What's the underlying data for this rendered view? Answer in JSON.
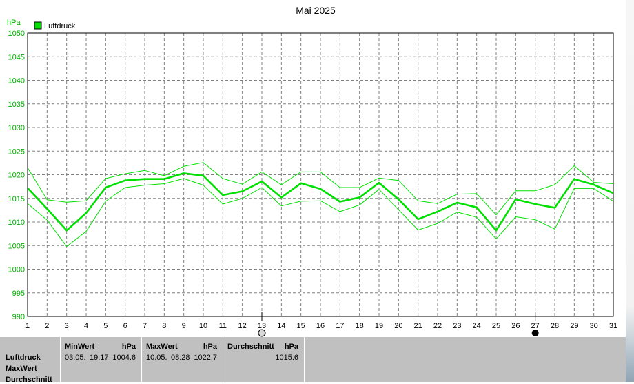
{
  "chart_data": {
    "type": "line",
    "title": "Mai 2025",
    "ylabel": "hPa",
    "legend": {
      "label": "Luftdruck",
      "placement": "top-left",
      "color": "#00e000"
    },
    "ylim": [
      990,
      1050
    ],
    "yticks": [
      990,
      995,
      1000,
      1005,
      1010,
      1015,
      1020,
      1025,
      1030,
      1035,
      1040,
      1045,
      1050
    ],
    "x": [
      1,
      2,
      3,
      4,
      5,
      6,
      7,
      8,
      9,
      10,
      11,
      12,
      13,
      14,
      15,
      16,
      17,
      18,
      19,
      20,
      21,
      22,
      23,
      24,
      25,
      26,
      27,
      28,
      29,
      30,
      31
    ],
    "grid": true,
    "colors": {
      "series": "#00e000",
      "grid": "#808080",
      "axis_text": "#00b000"
    },
    "series": [
      {
        "name": "Luftdruck",
        "values": [
          1017.2,
          1012.8,
          1008.2,
          1011.9,
          1017.3,
          1018.8,
          1019.1,
          1019.1,
          1020.3,
          1019.8,
          1015.7,
          1016.5,
          1018.6,
          1015.2,
          1018.2,
          1017.0,
          1014.3,
          1015.2,
          1018.3,
          1014.8,
          1010.6,
          1012.2,
          1014.1,
          1013.1,
          1008.2,
          1014.8,
          1013.8,
          1013.0,
          1019.1,
          1017.9,
          1016.1
        ]
      },
      {
        "values": [
          1021.5,
          1014.7,
          1014.2,
          1014.5,
          1019.2,
          1020.2,
          1020.9,
          1019.8,
          1021.8,
          1022.6,
          1019.2,
          1018.0,
          1020.6,
          1017.9,
          1020.6,
          1020.6,
          1017.3,
          1017.3,
          1019.3,
          1018.8,
          1014.5,
          1013.9,
          1015.9,
          1016.0,
          1011.5,
          1016.6,
          1016.6,
          1017.9,
          1021.9,
          1018.4,
          1018.1
        ]
      },
      {
        "values": [
          1013.9,
          1010.4,
          1004.8,
          1008.0,
          1014.4,
          1017.3,
          1017.8,
          1018.1,
          1019.2,
          1017.8,
          1013.8,
          1015.0,
          1017.3,
          1013.4,
          1014.4,
          1014.5,
          1012.2,
          1013.6,
          1016.9,
          1012.6,
          1008.3,
          1009.7,
          1012.1,
          1011.0,
          1006.4,
          1011.1,
          1010.5,
          1008.5,
          1017.1,
          1017.1,
          1014.4
        ]
      }
    ]
  },
  "stats": {
    "row_labels": [
      "Luftdruck",
      "MaxWert",
      "Durchschnitt"
    ],
    "min": {
      "header": "MinWert",
      "unit": "hPa",
      "date": "03.05.",
      "time": "19:17",
      "value": "1004.6"
    },
    "max": {
      "header": "MaxWert",
      "unit": "hPa",
      "date": "10.05.",
      "time": "08:28",
      "value": "1022.7"
    },
    "avg": {
      "header": "Durchschnitt",
      "unit": "hPa",
      "value": "1015.6"
    }
  },
  "markers": {
    "min_day": 13,
    "max_day": 27
  }
}
